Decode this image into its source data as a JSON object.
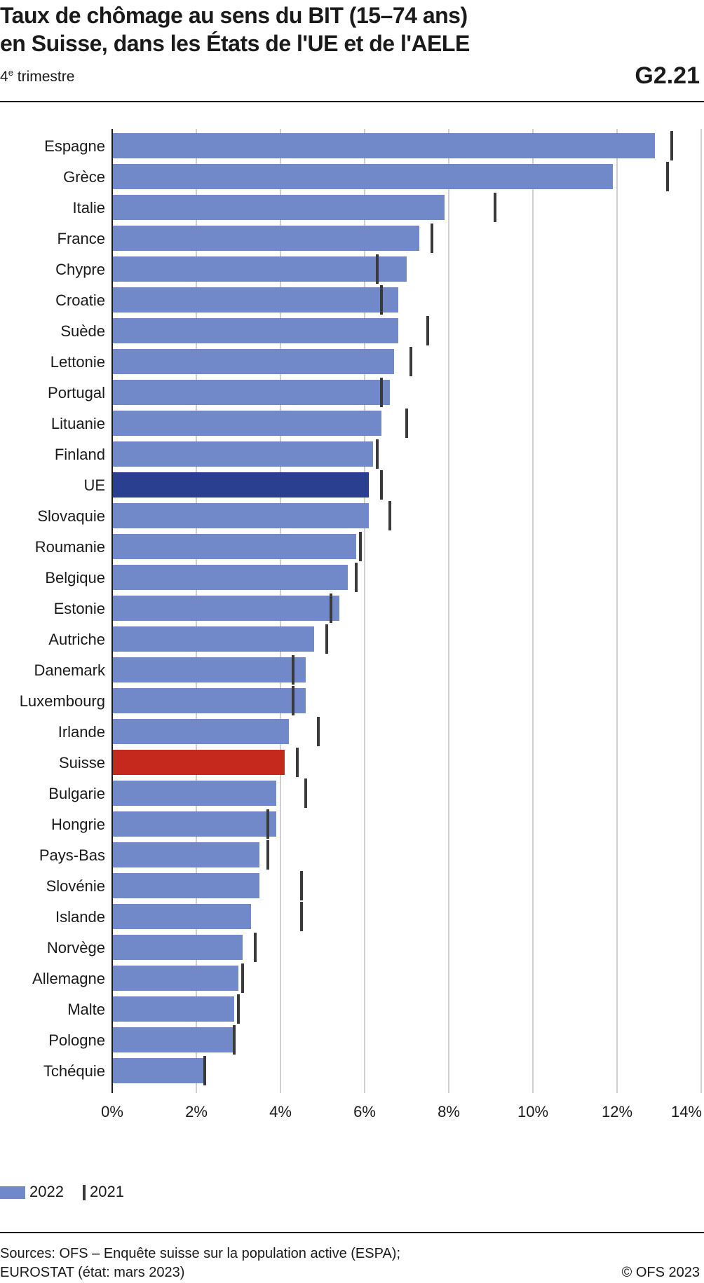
{
  "header": {
    "title_line1": "Taux de chômage au sens du BIT (15–74 ans)",
    "title_line2": "en Suisse, dans les États de l'UE et de l'AELE",
    "subtitle_num": "4",
    "subtitle_sup": "e",
    "subtitle_rest": " trimestre",
    "code": "G2.21"
  },
  "colors": {
    "bar": "#7289c9",
    "eu_highlight": "#2a3f8f",
    "ch_highlight": "#c5281c",
    "marker": "#3a3a3a",
    "grid": "#d0d0d0",
    "axis": "#1a1a1a"
  },
  "chart_data": {
    "type": "bar",
    "orientation": "horizontal",
    "xlim": [
      0,
      14
    ],
    "xticks": [
      0,
      2,
      4,
      6,
      8,
      10,
      12,
      14
    ],
    "tick_suffix": "%",
    "grid": true,
    "categories": [
      "Espagne",
      "Grèce",
      "Italie",
      "France",
      "Chypre",
      "Croatie",
      "Suède",
      "Lettonie",
      "Portugal",
      "Lituanie",
      "Finland",
      "UE",
      "Slovaquie",
      "Roumanie",
      "Belgique",
      "Estonie",
      "Autriche",
      "Danemark",
      "Luxembourg",
      "Irlande",
      "Suisse",
      "Bulgarie",
      "Hongrie",
      "Pays-Bas",
      "Slovénie",
      "Islande",
      "Norvège",
      "Allemagne",
      "Malte",
      "Pologne",
      "Tchéquie"
    ],
    "series": [
      {
        "name": "2022",
        "style": "bar",
        "values": [
          12.9,
          11.9,
          7.9,
          7.3,
          7.0,
          6.8,
          6.8,
          6.7,
          6.6,
          6.4,
          6.2,
          6.1,
          6.1,
          5.8,
          5.6,
          5.4,
          4.8,
          4.6,
          4.6,
          4.2,
          4.1,
          3.9,
          3.9,
          3.5,
          3.5,
          3.3,
          3.1,
          3.0,
          2.9,
          2.9,
          2.2
        ]
      },
      {
        "name": "2021",
        "style": "marker",
        "values": [
          13.3,
          13.2,
          9.1,
          7.6,
          6.3,
          6.4,
          7.5,
          7.1,
          6.4,
          7.0,
          6.3,
          6.4,
          6.6,
          5.9,
          5.8,
          5.2,
          5.1,
          4.3,
          4.3,
          4.9,
          4.4,
          4.6,
          3.7,
          3.7,
          4.5,
          4.5,
          3.4,
          3.1,
          3.0,
          2.9,
          2.2
        ]
      }
    ],
    "highlight": {
      "UE": "eu_highlight",
      "Suisse": "ch_highlight"
    }
  },
  "legend": {
    "item_2022": "2022",
    "item_2021": "2021"
  },
  "footer": {
    "sources_line1": "Sources: OFS – Enquête suisse sur la population active (ESPA);",
    "sources_line2": "EUROSTAT (état: mars 2023)",
    "copyright": "© OFS 2023"
  }
}
